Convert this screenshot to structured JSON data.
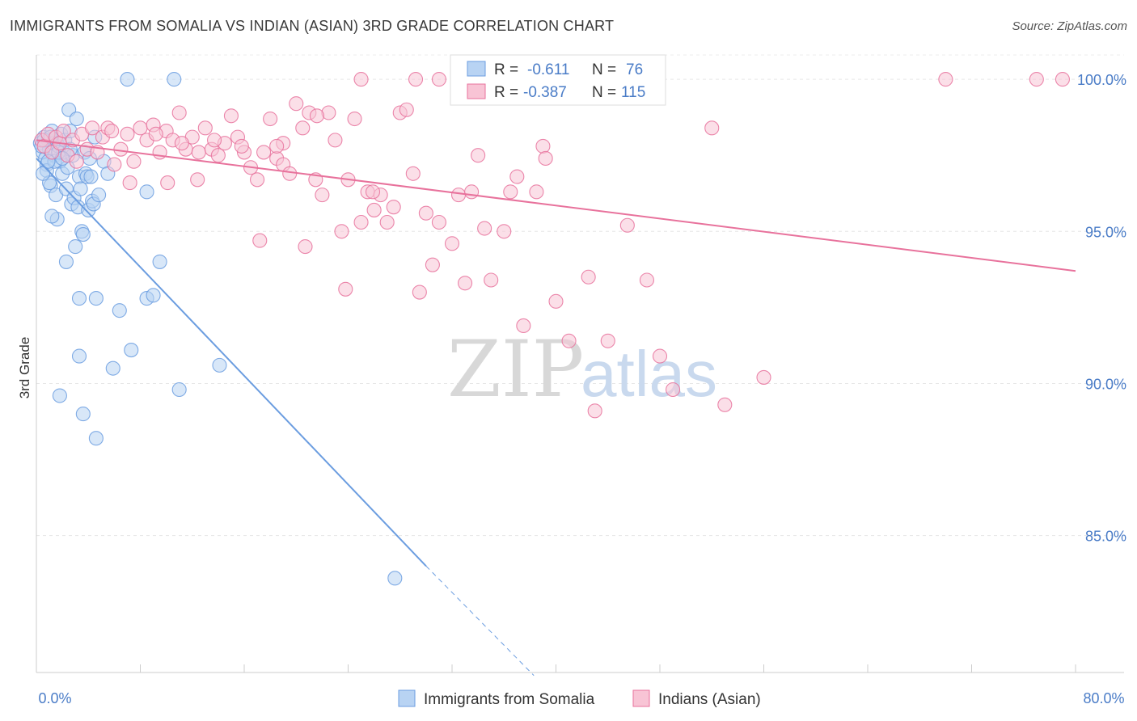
{
  "title": "IMMIGRANTS FROM SOMALIA VS INDIAN (ASIAN) 3RD GRADE CORRELATION CHART",
  "source": "Source: ZipAtlas.com",
  "watermark": {
    "zip": "ZIP",
    "atlas": "atlas"
  },
  "chart_data": {
    "type": "scatter",
    "title": "IMMIGRANTS FROM SOMALIA VS INDIAN (ASIAN) 3RD GRADE CORRELATION CHART",
    "xlabel": "",
    "ylabel": "3rd Grade",
    "xlim": [
      0,
      80
    ],
    "ylim": [
      80.5,
      100.8
    ],
    "x_tick_labels": [
      "0.0%",
      "80.0%"
    ],
    "y_ticks": [
      85,
      90,
      95,
      100
    ],
    "y_tick_labels": [
      "85.0%",
      "90.0%",
      "95.0%",
      "100.0%"
    ],
    "grid": true,
    "legend_stats": [
      {
        "r_label": "R =",
        "r_value": "-0.611",
        "n_label": "N =",
        "n_value": "76"
      },
      {
        "r_label": "R =",
        "r_value": "-0.387",
        "n_label": "N =",
        "n_value": "115"
      }
    ],
    "series": [
      {
        "name": "Immigrants from Somalia",
        "color": "#6b9de0",
        "fill": "#b8d3f3",
        "trend": {
          "x": [
            0,
            30
          ],
          "y": [
            97.4,
            84.0
          ],
          "dashed_to": [
            38.3,
            80.4
          ]
        },
        "points": [
          [
            0.3,
            97.9
          ],
          [
            0.5,
            97.6
          ],
          [
            0.6,
            98.1
          ],
          [
            0.7,
            97.4
          ],
          [
            0.8,
            97.2
          ],
          [
            0.9,
            98.0
          ],
          [
            1.0,
            97.7
          ],
          [
            1.1,
            96.5
          ],
          [
            1.2,
            98.3
          ],
          [
            1.3,
            97.9
          ],
          [
            1.4,
            97.5
          ],
          [
            1.5,
            96.2
          ],
          [
            1.6,
            95.4
          ],
          [
            1.7,
            97.8
          ],
          [
            1.8,
            97.3
          ],
          [
            1.9,
            98.2
          ],
          [
            2.0,
            96.9
          ],
          [
            2.1,
            97.6
          ],
          [
            2.2,
            98.0
          ],
          [
            2.3,
            96.4
          ],
          [
            2.4,
            97.1
          ],
          [
            2.5,
            99.0
          ],
          [
            2.6,
            98.3
          ],
          [
            2.7,
            95.9
          ],
          [
            2.8,
            97.5
          ],
          [
            2.9,
            96.1
          ],
          [
            3.0,
            94.5
          ],
          [
            3.1,
            98.7
          ],
          [
            3.2,
            95.8
          ],
          [
            3.3,
            96.8
          ],
          [
            3.4,
            96.4
          ],
          [
            3.5,
            95.0
          ],
          [
            3.6,
            94.9
          ],
          [
            3.7,
            97.6
          ],
          [
            3.8,
            96.9
          ],
          [
            3.9,
            96.8
          ],
          [
            4.0,
            95.7
          ],
          [
            4.1,
            97.4
          ],
          [
            4.2,
            96.8
          ],
          [
            4.3,
            96.0
          ],
          [
            4.4,
            95.9
          ],
          [
            4.5,
            98.1
          ],
          [
            4.8,
            96.2
          ],
          [
            5.2,
            97.3
          ],
          [
            5.5,
            96.9
          ],
          [
            0.8,
            97.0
          ],
          [
            1.0,
            96.6
          ],
          [
            1.2,
            95.5
          ],
          [
            2.3,
            94.0
          ],
          [
            3.3,
            92.8
          ],
          [
            4.6,
            92.8
          ],
          [
            6.4,
            92.4
          ],
          [
            8.5,
            92.8
          ],
          [
            9.0,
            92.9
          ],
          [
            7.3,
            91.1
          ],
          [
            3.3,
            90.9
          ],
          [
            5.9,
            90.5
          ],
          [
            14.1,
            90.6
          ],
          [
            1.8,
            89.6
          ],
          [
            3.6,
            89.0
          ],
          [
            11.0,
            89.8
          ],
          [
            4.6,
            88.2
          ],
          [
            9.5,
            94.0
          ],
          [
            8.5,
            96.3
          ],
          [
            7.0,
            100.0
          ],
          [
            10.6,
            100.0
          ],
          [
            27.6,
            83.6
          ],
          [
            1.4,
            97.3
          ],
          [
            0.4,
            97.8
          ],
          [
            0.6,
            98.0
          ],
          [
            1.7,
            97.6
          ],
          [
            2.6,
            97.7
          ],
          [
            1.1,
            98.1
          ],
          [
            2.0,
            97.4
          ],
          [
            0.9,
            97.3
          ],
          [
            0.5,
            96.9
          ]
        ]
      },
      {
        "name": "Indians (Asian)",
        "color": "#e8729c",
        "fill": "#f8c4d5",
        "trend": {
          "x": [
            0,
            80
          ],
          "y": [
            98.0,
            93.7
          ]
        },
        "points": [
          [
            0.4,
            98.0
          ],
          [
            0.6,
            97.8
          ],
          [
            0.9,
            98.2
          ],
          [
            1.2,
            97.6
          ],
          [
            1.5,
            98.1
          ],
          [
            1.8,
            97.9
          ],
          [
            2.1,
            98.3
          ],
          [
            2.4,
            97.5
          ],
          [
            2.8,
            98.0
          ],
          [
            3.1,
            97.3
          ],
          [
            3.5,
            98.2
          ],
          [
            3.9,
            97.7
          ],
          [
            4.3,
            98.4
          ],
          [
            4.7,
            97.6
          ],
          [
            5.1,
            98.1
          ],
          [
            5.5,
            98.4
          ],
          [
            6.0,
            97.2
          ],
          [
            6.5,
            97.7
          ],
          [
            7.0,
            98.2
          ],
          [
            7.5,
            97.3
          ],
          [
            8.0,
            98.4
          ],
          [
            8.5,
            98.0
          ],
          [
            9.0,
            98.5
          ],
          [
            9.5,
            97.6
          ],
          [
            10.0,
            98.3
          ],
          [
            10.5,
            98.0
          ],
          [
            11.0,
            98.9
          ],
          [
            11.5,
            97.7
          ],
          [
            12.0,
            98.1
          ],
          [
            12.5,
            97.6
          ],
          [
            13.0,
            98.4
          ],
          [
            13.5,
            97.7
          ],
          [
            14.0,
            97.5
          ],
          [
            14.5,
            97.9
          ],
          [
            15.0,
            98.8
          ],
          [
            15.5,
            98.1
          ],
          [
            16.0,
            97.6
          ],
          [
            16.5,
            97.1
          ],
          [
            17.0,
            96.7
          ],
          [
            17.5,
            97.6
          ],
          [
            18.0,
            98.7
          ],
          [
            18.5,
            97.4
          ],
          [
            19.0,
            97.2
          ],
          [
            19.5,
            96.9
          ],
          [
            20.0,
            99.2
          ],
          [
            20.5,
            98.4
          ],
          [
            21.0,
            98.9
          ],
          [
            21.5,
            96.7
          ],
          [
            22.0,
            96.2
          ],
          [
            22.5,
            98.9
          ],
          [
            23.0,
            98.0
          ],
          [
            23.5,
            95.0
          ],
          [
            24.0,
            96.7
          ],
          [
            24.5,
            98.7
          ],
          [
            25.0,
            95.3
          ],
          [
            25.5,
            96.3
          ],
          [
            26.0,
            95.7
          ],
          [
            26.5,
            96.2
          ],
          [
            27.0,
            95.3
          ],
          [
            27.5,
            95.8
          ],
          [
            28.0,
            98.9
          ],
          [
            28.5,
            99.0
          ],
          [
            29.0,
            96.9
          ],
          [
            29.5,
            93.0
          ],
          [
            30.0,
            95.6
          ],
          [
            30.5,
            93.9
          ],
          [
            31.0,
            95.3
          ],
          [
            32.0,
            94.6
          ],
          [
            32.5,
            96.2
          ],
          [
            33.0,
            93.3
          ],
          [
            33.5,
            96.3
          ],
          [
            34.0,
            97.5
          ],
          [
            34.5,
            95.1
          ],
          [
            35.0,
            93.4
          ],
          [
            36.0,
            95.0
          ],
          [
            36.5,
            96.3
          ],
          [
            37.0,
            96.8
          ],
          [
            37.5,
            91.9
          ],
          [
            38.5,
            96.3
          ],
          [
            39.0,
            97.8
          ],
          [
            39.2,
            97.4
          ],
          [
            40.0,
            92.7
          ],
          [
            41.0,
            91.4
          ],
          [
            42.5,
            93.5
          ],
          [
            43.0,
            89.1
          ],
          [
            44.0,
            91.4
          ],
          [
            45.5,
            95.2
          ],
          [
            47.0,
            93.4
          ],
          [
            48.0,
            90.9
          ],
          [
            49.0,
            89.8
          ],
          [
            52.0,
            98.4
          ],
          [
            53.0,
            89.3
          ],
          [
            56.0,
            90.2
          ],
          [
            7.2,
            96.6
          ],
          [
            10.1,
            96.6
          ],
          [
            12.4,
            96.7
          ],
          [
            17.2,
            94.7
          ],
          [
            20.7,
            94.5
          ],
          [
            23.8,
            93.1
          ],
          [
            25.9,
            96.3
          ],
          [
            29.2,
            100.0
          ],
          [
            25.0,
            100.0
          ],
          [
            31.0,
            100.0
          ],
          [
            47.0,
            100.0
          ],
          [
            70.0,
            100.0
          ],
          [
            77.0,
            100.0
          ],
          [
            79.0,
            100.0
          ],
          [
            21.6,
            98.8
          ],
          [
            19.0,
            97.9
          ],
          [
            18.5,
            97.8
          ],
          [
            15.8,
            97.8
          ],
          [
            13.7,
            98.0
          ],
          [
            11.2,
            97.9
          ],
          [
            9.2,
            98.2
          ],
          [
            5.8,
            98.3
          ]
        ]
      }
    ]
  }
}
